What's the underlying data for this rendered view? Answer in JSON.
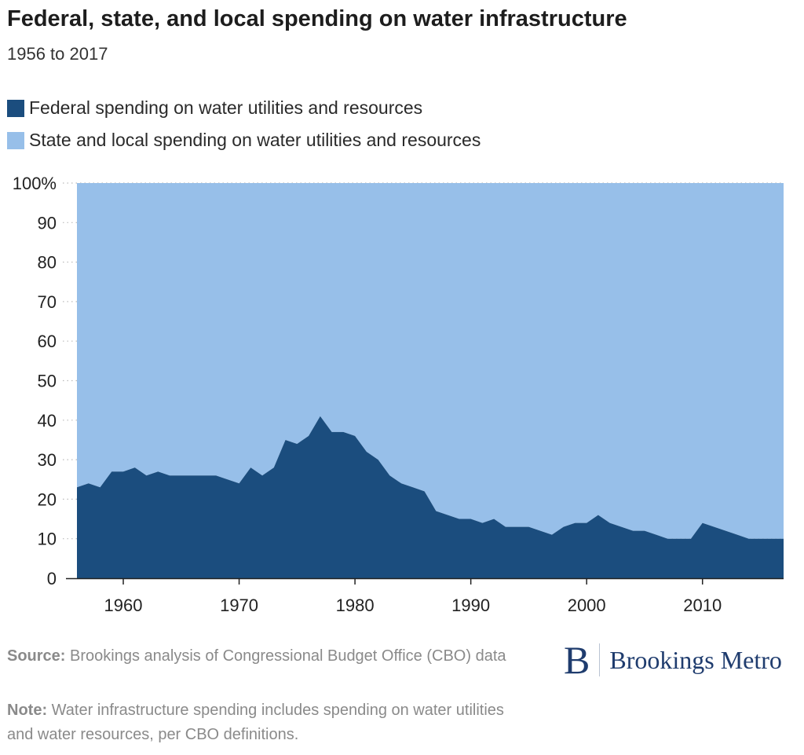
{
  "title": "Federal, state, and local spending on water infrastructure",
  "subtitle": "1956 to 2017",
  "colors": {
    "federal": "#1b4d7e",
    "state_local": "#97bfe9",
    "grid": "#bbbbbb",
    "logo": "#1f3c6e"
  },
  "footer": {
    "source_label": "Source:",
    "source_text": " Brookings analysis of Congressional Budget Office (CBO) data",
    "note_label": "Note:",
    "note_text": " Water infrastructure spending includes spending on water utilities and water resources, per CBO definitions.",
    "logo_mark": "B",
    "logo_text": "Brookings Metro"
  },
  "chart_data": {
    "type": "area",
    "stacked": true,
    "percent": true,
    "legend_position": "top",
    "grid": "horizontal dotted",
    "x": [
      1956,
      1957,
      1958,
      1959,
      1960,
      1961,
      1962,
      1963,
      1964,
      1965,
      1966,
      1967,
      1968,
      1969,
      1970,
      1971,
      1972,
      1973,
      1974,
      1975,
      1976,
      1977,
      1978,
      1979,
      1980,
      1981,
      1982,
      1983,
      1984,
      1985,
      1986,
      1987,
      1988,
      1989,
      1990,
      1991,
      1992,
      1993,
      1994,
      1995,
      1996,
      1997,
      1998,
      1999,
      2000,
      2001,
      2002,
      2003,
      2004,
      2005,
      2006,
      2007,
      2008,
      2009,
      2010,
      2011,
      2012,
      2013,
      2014,
      2015,
      2016,
      2017
    ],
    "xlim": [
      1956,
      2017
    ],
    "xticks": [
      1960,
      1970,
      1980,
      1990,
      2000,
      2010
    ],
    "ylim": [
      0,
      100
    ],
    "yticks": [
      0,
      10,
      20,
      30,
      40,
      50,
      60,
      70,
      80,
      90,
      100
    ],
    "ytick_labels": [
      "0",
      "10",
      "20",
      "30",
      "40",
      "50",
      "60",
      "70",
      "80",
      "90",
      "100%"
    ],
    "series": [
      {
        "name": "Federal spending on water utilities and resources",
        "values": [
          23,
          24,
          23,
          27,
          27,
          28,
          26,
          27,
          26,
          26,
          26,
          26,
          26,
          25,
          24,
          28,
          26,
          28,
          35,
          34,
          36,
          41,
          37,
          37,
          36,
          32,
          30,
          26,
          24,
          23,
          22,
          17,
          16,
          15,
          15,
          14,
          15,
          13,
          13,
          13,
          12,
          11,
          13,
          14,
          14,
          16,
          14,
          13,
          12,
          12,
          11,
          10,
          10,
          10,
          14,
          13,
          12,
          11,
          10,
          10,
          10,
          10
        ]
      },
      {
        "name": "State and local spending on water utilities and resources",
        "values": [
          77,
          76,
          77,
          73,
          73,
          72,
          74,
          73,
          74,
          74,
          74,
          74,
          74,
          75,
          76,
          72,
          74,
          72,
          65,
          66,
          64,
          59,
          63,
          63,
          64,
          68,
          70,
          74,
          76,
          77,
          78,
          83,
          84,
          85,
          85,
          86,
          85,
          87,
          87,
          87,
          88,
          89,
          87,
          86,
          86,
          84,
          86,
          87,
          88,
          88,
          89,
          90,
          90,
          90,
          86,
          87,
          88,
          89,
          90,
          90,
          90,
          90
        ]
      }
    ]
  }
}
